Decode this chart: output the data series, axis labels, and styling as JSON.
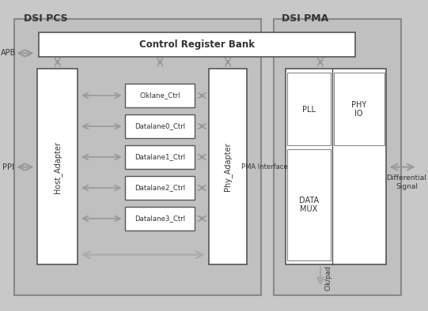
{
  "bg_color": "#c8c8c8",
  "box_fill": "#ffffff",
  "box_edge": "#555555",
  "dsi_pcs_label": "DSI PCS",
  "dsi_pma_label": "DSI PMA",
  "control_register_bank": "Control Register Bank",
  "host_adapter_label": "Host_Adapter",
  "phy_adapter_label": "Phy_Adapter",
  "lane_labels": [
    "Clklane_Ctrl",
    "Datalane0_Ctrl",
    "Datalane1_Ctrl",
    "Datalane2_Ctrl",
    "Datalane3_Ctrl"
  ],
  "pll_label": "PLL",
  "phy_io_label": "PHY\nIO",
  "data_mux_label": "DATA\nMUX",
  "pma_interface_label": "PMA Interface",
  "apb_label": "APB",
  "ppi_label": "PPI",
  "diff_signal_label": "Differential\nSignal",
  "clk_pad_label": "Clk/pad",
  "arrow_color": "#888888",
  "arrow_edge": "#555555",
  "text_color": "#333333",
  "title_fontsize": 9,
  "label_fontsize": 7,
  "small_fontsize": 6
}
